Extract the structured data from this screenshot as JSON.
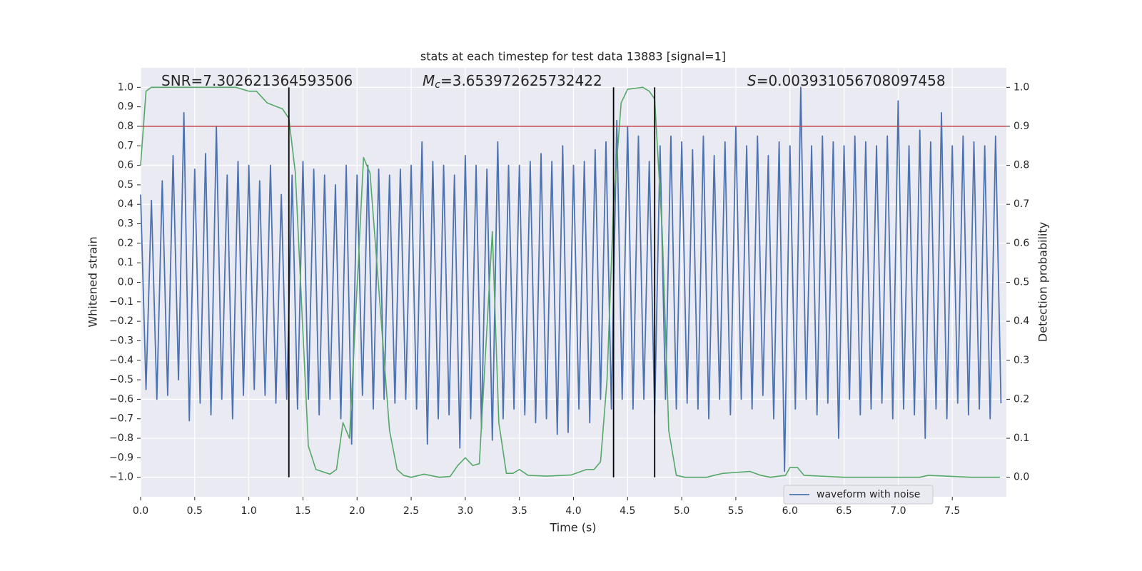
{
  "chart_data": {
    "type": "line",
    "title": "stats at each timestep for test data 13883 [signal=1]",
    "xlabel": "Time (s)",
    "ylabel": "Whitened strain",
    "y2label": "Detection probability",
    "xlim": [
      0,
      8.0
    ],
    "ylim": [
      -1.1,
      1.1
    ],
    "y2lim": [
      -0.05,
      1.05
    ],
    "xticks": [
      {
        "value": 0,
        "label": "0.0"
      },
      0.5,
      {
        "value": 1,
        "label": "1.0"
      },
      1.5,
      {
        "value": 2,
        "label": "2.0"
      },
      2.5,
      {
        "value": 3,
        "label": "3.0"
      },
      3.5,
      {
        "value": 4,
        "label": "4.0"
      },
      4.5,
      {
        "value": 5,
        "label": "5.0"
      },
      5.5,
      {
        "value": 6,
        "label": "6.0"
      },
      6.5,
      {
        "value": 7,
        "label": "7.0"
      },
      7.5
    ],
    "yticks": [
      {
        "value": -1,
        "label": "−1.0"
      },
      {
        "value": -0.9,
        "label": "−0.9"
      },
      {
        "value": -0.8,
        "label": "−0.8"
      },
      {
        "value": -0.7,
        "label": "−0.7"
      },
      {
        "value": -0.6,
        "label": "−0.6"
      },
      {
        "value": -0.5,
        "label": "−0.5"
      },
      {
        "value": -0.4,
        "label": "−0.4"
      },
      {
        "value": -0.3,
        "label": "−0.3"
      },
      {
        "value": -0.2,
        "label": "−0.2"
      },
      {
        "value": -0.1,
        "label": "−0.1"
      },
      {
        "value": 0,
        "label": "0.0"
      },
      0.1,
      0.2,
      0.3,
      0.4,
      0.5,
      0.6,
      0.7,
      0.8,
      0.9,
      {
        "value": 1,
        "label": "1.0"
      }
    ],
    "y2ticks": [
      {
        "value": 0,
        "label": "0.0"
      },
      0.1,
      0.2,
      0.3,
      0.4,
      0.5,
      0.6,
      0.7,
      0.8,
      0.9,
      {
        "value": 1,
        "label": "1.0"
      }
    ],
    "grid": true,
    "legend_loc": "lower right",
    "series": [
      {
        "name": "waveform with noise",
        "color": "#4c72b0",
        "x": [
          0,
          0.05,
          0.1,
          0.15,
          0.2,
          0.25,
          0.3,
          0.35,
          0.4,
          0.45,
          0.5,
          0.55,
          0.6,
          0.65,
          0.7,
          0.75,
          0.8,
          0.85,
          0.9,
          0.95,
          1,
          1.05,
          1.1,
          1.15,
          1.2,
          1.25,
          1.3,
          1.35,
          1.4,
          1.45,
          1.5,
          1.55,
          1.6,
          1.65,
          1.7,
          1.75,
          1.8,
          1.85,
          1.9,
          1.95,
          2,
          2.05,
          2.1,
          2.15,
          2.2,
          2.25,
          2.3,
          2.35,
          2.4,
          2.45,
          2.5,
          2.55,
          2.6,
          2.65,
          2.7,
          2.75,
          2.8,
          2.85,
          2.9,
          2.95,
          3,
          3.05,
          3.1,
          3.15,
          3.2,
          3.25,
          3.3,
          3.35,
          3.4,
          3.45,
          3.5,
          3.55,
          3.6,
          3.65,
          3.7,
          3.75,
          3.8,
          3.85,
          3.9,
          3.95,
          4,
          4.05,
          4.1,
          4.15,
          4.2,
          4.25,
          4.3,
          4.35,
          4.4,
          4.45,
          4.5,
          4.55,
          4.6,
          4.65,
          4.7,
          4.75,
          4.8,
          4.85,
          4.9,
          4.95,
          5,
          5.05,
          5.1,
          5.15,
          5.2,
          5.25,
          5.3,
          5.35,
          5.4,
          5.45,
          5.5,
          5.55,
          5.6,
          5.65,
          5.7,
          5.75,
          5.8,
          5.85,
          5.9,
          5.95,
          6,
          6.05,
          6.1,
          6.15,
          6.2,
          6.25,
          6.3,
          6.35,
          6.4,
          6.45,
          6.5,
          6.55,
          6.6,
          6.65,
          6.7,
          6.75,
          6.8,
          6.85,
          6.9,
          6.95,
          7,
          7.05,
          7.1,
          7.15,
          7.2,
          7.25,
          7.3,
          7.35,
          7.4,
          7.45,
          7.5,
          7.55,
          7.6,
          7.65,
          7.7,
          7.75,
          7.8,
          7.85,
          7.9,
          7.95
        ],
        "values": [
          0.45,
          -0.55,
          0.42,
          -0.6,
          0.52,
          -0.58,
          0.65,
          -0.5,
          0.87,
          -0.71,
          0.58,
          -0.62,
          0.66,
          -0.68,
          0.8,
          -0.6,
          0.55,
          -0.7,
          0.62,
          -0.58,
          0.6,
          -0.55,
          0.52,
          -0.58,
          0.6,
          -0.62,
          0.45,
          -0.6,
          0.55,
          -0.65,
          0.62,
          -0.6,
          0.58,
          -0.68,
          0.55,
          -0.6,
          0.5,
          -0.7,
          0.6,
          -0.83,
          0.55,
          -0.58,
          0.6,
          -0.65,
          0.58,
          -0.6,
          0.55,
          -0.62,
          0.58,
          -0.6,
          0.6,
          -0.65,
          0.72,
          -0.83,
          0.62,
          -0.7,
          0.6,
          -0.68,
          0.55,
          -0.85,
          0.65,
          -0.7,
          0.6,
          -0.75,
          0.58,
          -0.81,
          0.72,
          -0.7,
          0.6,
          -0.65,
          0.6,
          -0.68,
          0.62,
          -0.72,
          0.66,
          -0.7,
          0.62,
          -0.78,
          0.7,
          -0.77,
          0.6,
          -0.65,
          0.62,
          -0.72,
          0.68,
          -0.6,
          0.72,
          -0.65,
          0.83,
          -0.6,
          0.8,
          -0.65,
          0.75,
          -0.6,
          0.62,
          -0.68,
          0.7,
          -0.6,
          0.75,
          -0.65,
          0.72,
          -0.62,
          0.68,
          -0.65,
          0.75,
          -0.7,
          0.65,
          -0.6,
          0.72,
          -0.68,
          0.8,
          -0.6,
          0.7,
          -0.65,
          0.75,
          -0.58,
          0.65,
          -0.7,
          0.72,
          -0.97,
          0.7,
          -0.65,
          1.0,
          -0.6,
          0.7,
          -0.68,
          0.75,
          -0.62,
          0.72,
          -0.8,
          0.7,
          -0.6,
          0.75,
          -0.68,
          0.72,
          -0.65,
          0.7,
          -0.62,
          0.75,
          -0.7,
          0.93,
          -0.65,
          0.7,
          -0.68,
          0.78,
          -0.8,
          0.72,
          -0.65,
          0.87,
          -0.7,
          0.7,
          -0.62,
          0.75,
          -0.68,
          0.72,
          -0.65,
          0.7,
          -0.7,
          0.75,
          -0.62
        ]
      },
      {
        "color": "#55a868",
        "axis": "y2",
        "x": [
          0,
          0.05,
          0.1,
          0.88,
          1.0,
          1.07,
          1.17,
          1.26,
          1.31,
          1.37,
          1.43,
          1.55,
          1.62,
          1.75,
          1.81,
          1.87,
          1.93,
          2.06,
          2.12,
          2.3,
          2.37,
          2.43,
          2.5,
          2.62,
          2.76,
          2.86,
          2.93,
          3.0,
          3.07,
          3.13,
          3.25,
          3.31,
          3.38,
          3.44,
          3.5,
          3.58,
          3.75,
          3.98,
          4.12,
          4.19,
          4.25,
          4.31,
          4.37,
          4.44,
          4.5,
          4.64,
          4.7,
          4.75,
          4.82,
          4.88,
          4.95,
          5.03,
          5.23,
          5.3,
          5.38,
          5.63,
          5.73,
          5.82,
          5.96,
          6.0,
          6.07,
          6.13,
          6.5,
          7.2,
          7.28,
          7.67,
          7.94
        ],
        "values": [
          0.8,
          0.99,
          1.0,
          1.0,
          0.99,
          0.99,
          0.96,
          0.95,
          0.945,
          0.92,
          0.78,
          0.08,
          0.02,
          0.008,
          0.02,
          0.14,
          0.1,
          0.82,
          0.78,
          0.12,
          0.02,
          0.005,
          0.0,
          0.008,
          0.0,
          0.002,
          0.03,
          0.05,
          0.03,
          0.035,
          0.63,
          0.14,
          0.01,
          0.01,
          0.02,
          0.005,
          0.003,
          0.006,
          0.02,
          0.02,
          0.04,
          0.25,
          0.7,
          0.96,
          0.995,
          1.0,
          0.99,
          0.97,
          0.63,
          0.12,
          0.005,
          0.0,
          0.0,
          0.005,
          0.01,
          0.015,
          0.005,
          0.0,
          0.005,
          0.025,
          0.025,
          0.005,
          0.0,
          0.0,
          0.005,
          0.0,
          0.0
        ]
      }
    ],
    "vlines": {
      "x": [
        1.37,
        4.37,
        4.75
      ],
      "ymin": -1,
      "ymax": 1,
      "color": "#000000"
    },
    "hline": {
      "y": 0.8,
      "color": "#c44e52"
    },
    "annotations": [
      {
        "parts": [
          "SNR=7.302621364593506"
        ]
      },
      {
        "parts": [
          "M",
          "c",
          "=3.653972625732422"
        ]
      },
      {
        "parts": [
          "S",
          "=0.003931056708097458"
        ]
      }
    ]
  }
}
